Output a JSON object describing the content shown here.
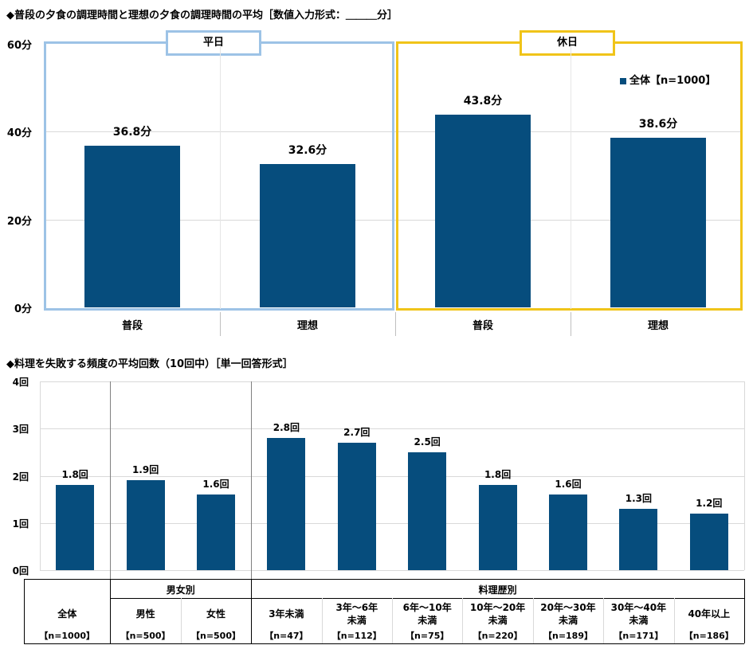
{
  "chart_data": [
    {
      "type": "bar",
      "title": "◆普段の夕食の調理時間と理想の夕食の調理時間の平均［数値入力形式：＿＿＿分］",
      "yticks": [
        "60分",
        "40分",
        "20分",
        "0分"
      ],
      "ylim": [
        0,
        60
      ],
      "panels": [
        {
          "label": "平日",
          "color": "#9dc3e6",
          "categories": [
            "普段",
            "理想"
          ],
          "values": [
            36.8,
            32.6
          ],
          "labels": [
            "36.8分",
            "32.6分"
          ]
        },
        {
          "label": "休日",
          "color": "#f0c419",
          "categories": [
            "普段",
            "理想"
          ],
          "values": [
            43.8,
            38.6
          ],
          "labels": [
            "43.8分",
            "38.6分"
          ]
        }
      ],
      "legend": "全体【n=1000】",
      "legend_position": "top-right",
      "bar_color": "#064d7d"
    },
    {
      "type": "bar",
      "title": "◆料理を失敗する頻度の平均回数（10回中）［単一回答形式］",
      "yticks": [
        "4回",
        "3回",
        "2回",
        "1回",
        "0回"
      ],
      "ylim": [
        0,
        4
      ],
      "values": [
        1.8,
        1.9,
        1.6,
        2.8,
        2.7,
        2.5,
        1.8,
        1.6,
        1.3,
        1.2
      ],
      "labels": [
        "1.8回",
        "1.9回",
        "1.6回",
        "2.8回",
        "2.7回",
        "2.5回",
        "1.8回",
        "1.6回",
        "1.3回",
        "1.2回"
      ],
      "groups": [
        {
          "label": "",
          "span": 1
        },
        {
          "label": "男女別",
          "span": 2
        },
        {
          "label": "料理歴別",
          "span": 7
        }
      ],
      "categories": [
        {
          "line1": "全体",
          "line2": "",
          "n": "【n=1000】"
        },
        {
          "line1": "男性",
          "line2": "",
          "n": "【n=500】"
        },
        {
          "line1": "女性",
          "line2": "",
          "n": "【n=500】"
        },
        {
          "line1": "3年未満",
          "line2": "",
          "n": "【n=47】"
        },
        {
          "line1": "3年～6年",
          "line2": "未満",
          "n": "【n=112】"
        },
        {
          "line1": "6年～10年",
          "line2": "未満",
          "n": "【n=75】"
        },
        {
          "line1": "10年～20年",
          "line2": "未満",
          "n": "【n=220】"
        },
        {
          "line1": "20年～30年",
          "line2": "未満",
          "n": "【n=189】"
        },
        {
          "line1": "30年～40年",
          "line2": "未満",
          "n": "【n=171】"
        },
        {
          "line1": "40年以上",
          "line2": "",
          "n": "【n=186】"
        }
      ],
      "bar_color": "#064d7d"
    }
  ]
}
